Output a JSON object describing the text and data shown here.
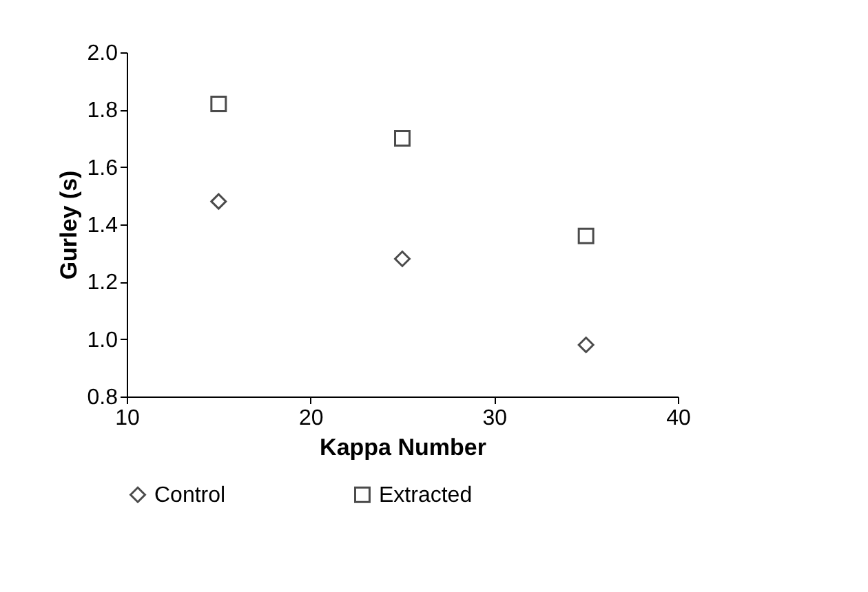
{
  "chart_data": {
    "type": "scatter",
    "xlabel": "Kappa Number",
    "ylabel": "Gurley (s)",
    "x": [
      15,
      25,
      35
    ],
    "series": [
      {
        "name": "Control",
        "color": "#000000",
        "marker": "diamond",
        "values": [
          1.48,
          1.28,
          0.98
        ]
      },
      {
        "name": "Extracted",
        "color": "#000000",
        "marker": "square",
        "values": [
          1.82,
          1.7,
          1.36
        ]
      }
    ],
    "xlim": [
      10,
      40
    ],
    "xticks": [
      10,
      20,
      30,
      40
    ],
    "ylim": [
      0.8,
      2.0
    ],
    "yticks": [
      0.8,
      {
        "value": 1.0,
        "label": "1.0"
      },
      1.2,
      1.4,
      1.6,
      1.8,
      {
        "value": 2.0,
        "label": "2.0"
      }
    ],
    "grid": false,
    "legend": "bottom"
  }
}
